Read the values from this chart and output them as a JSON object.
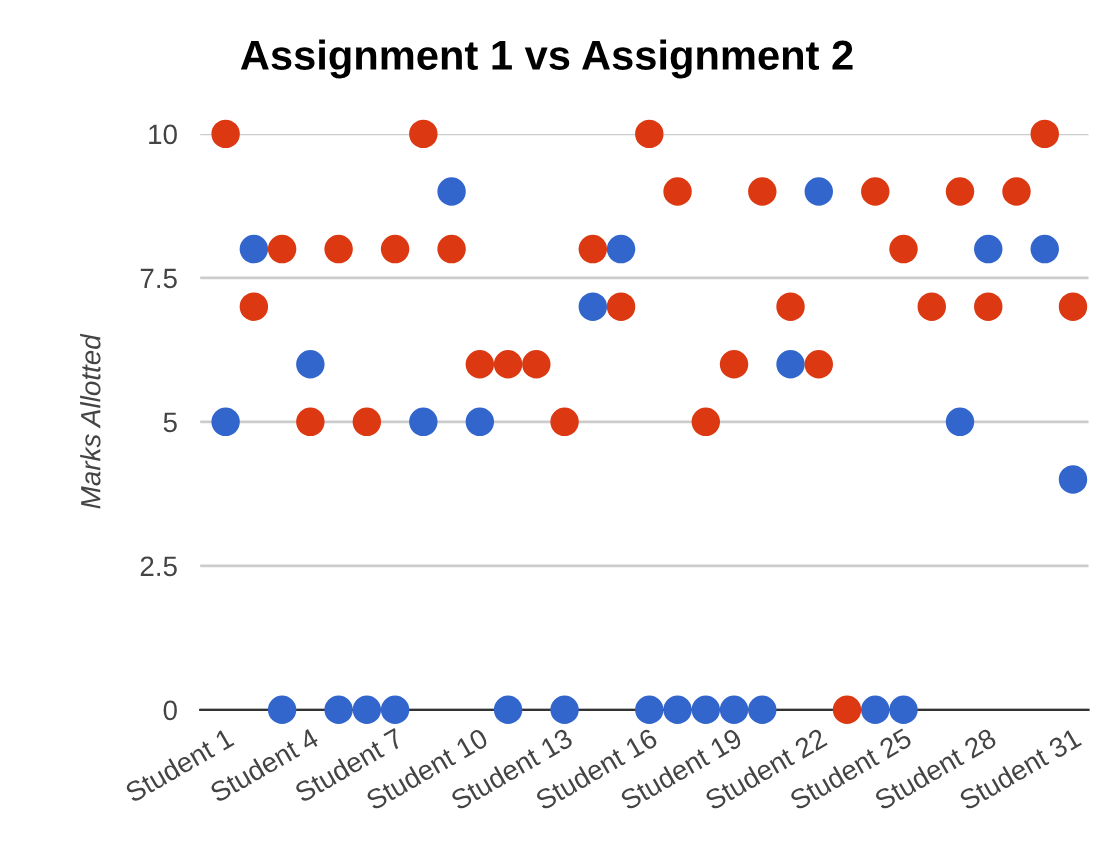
{
  "chart_data": {
    "type": "scatter",
    "title": "Assignment 1 vs Assignment 2",
    "ylabel": "Marks Allotted",
    "categories": [
      "Student 1",
      null,
      null,
      "Student 4",
      null,
      null,
      "Student 7",
      null,
      null,
      "Student 10",
      null,
      null,
      "Student 13",
      null,
      null,
      "Student 16",
      null,
      null,
      "Student 19",
      null,
      null,
      "Student 22",
      null,
      null,
      "Student 25",
      null,
      null,
      "Student 28",
      null,
      null,
      "Student 31"
    ],
    "series": [
      {
        "color": "#3366cc",
        "values": [
          5,
          8,
          0,
          6,
          0,
          0,
          0,
          5,
          9,
          5,
          0,
          null,
          0,
          7,
          8,
          0,
          0,
          0,
          0,
          0,
          6,
          9,
          null,
          0,
          0,
          null,
          5,
          8,
          null,
          8,
          4
        ]
      },
      {
        "color": "#dc3912",
        "values": [
          10,
          7,
          8,
          5,
          8,
          5,
          8,
          10,
          8,
          6,
          6,
          6,
          5,
          8,
          7,
          10,
          9,
          5,
          6,
          9,
          7,
          6,
          0,
          9,
          8,
          7,
          9,
          7,
          9,
          10,
          7
        ]
      }
    ],
    "ylim": [
      0,
      10
    ],
    "yticks": [
      0,
      2.5,
      5,
      7.5,
      10
    ],
    "grid": "y",
    "marker": "circle",
    "legend": false
  }
}
